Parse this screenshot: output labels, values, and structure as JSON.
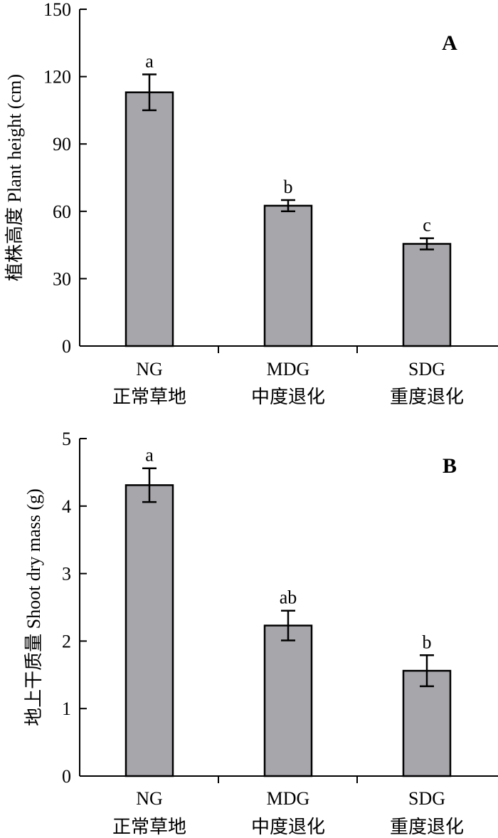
{
  "chart_data": [
    {
      "type": "bar",
      "panel_label": "A",
      "ylabel": "植株高度 Plant height (cm)",
      "xlabel": "",
      "ylim": [
        0,
        150
      ],
      "yticks": [
        0,
        30,
        60,
        90,
        120,
        150
      ],
      "categories": [
        {
          "code": "NG",
          "name": "正常草地"
        },
        {
          "code": "MDG",
          "name": "中度退化"
        },
        {
          "code": "SDG",
          "name": "重度退化"
        }
      ],
      "values": [
        113,
        62.5,
        45.5
      ],
      "errors": [
        8,
        2.5,
        2.5
      ],
      "significance": [
        "a",
        "b",
        "c"
      ],
      "grid": false,
      "bar_color": "#a7a6ab"
    },
    {
      "type": "bar",
      "panel_label": "B",
      "ylabel": "地上干质量 Shoot dry mass (g)",
      "xlabel": "",
      "ylim": [
        0,
        5
      ],
      "yticks": [
        0,
        1,
        2,
        3,
        4,
        5
      ],
      "categories": [
        {
          "code": "NG",
          "name": "正常草地"
        },
        {
          "code": "MDG",
          "name": "中度退化"
        },
        {
          "code": "SDG",
          "name": "重度退化"
        }
      ],
      "values": [
        4.31,
        2.23,
        1.56
      ],
      "errors": [
        0.25,
        0.22,
        0.23
      ],
      "significance": [
        "a",
        "ab",
        "b"
      ],
      "grid": false,
      "bar_color": "#a7a6ab"
    }
  ]
}
